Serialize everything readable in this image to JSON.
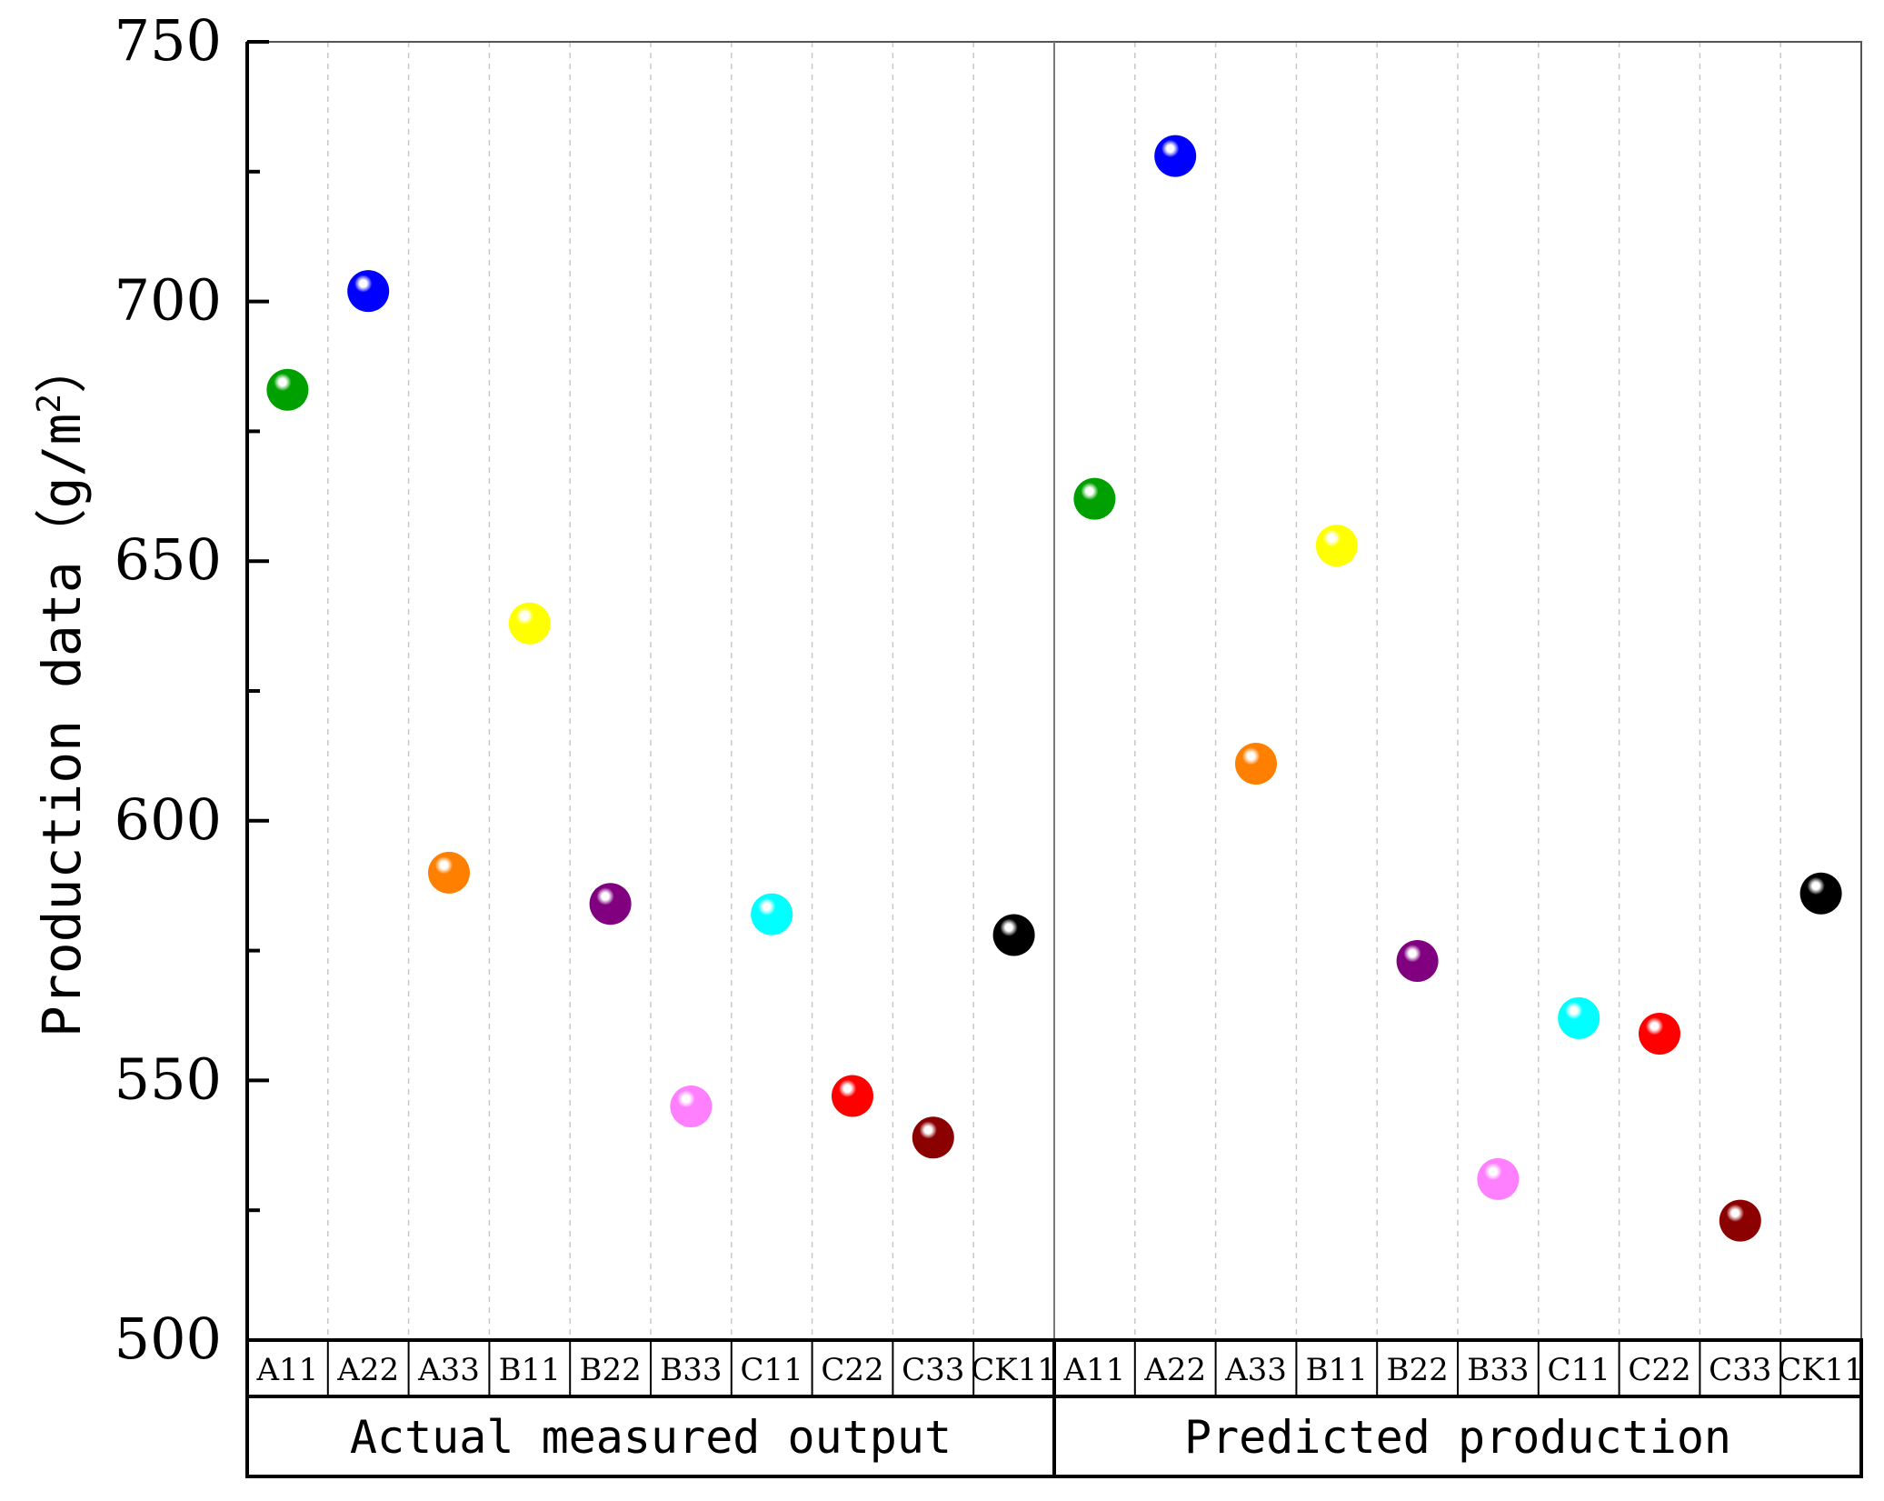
{
  "chart_data": {
    "type": "scatter",
    "ylabel": "Production data（g/m",
    "ylabel_sup": "2",
    "ylabel_end": "）",
    "ylim": [
      500,
      750
    ],
    "yticks": [
      500,
      550,
      600,
      650,
      700,
      750
    ],
    "grid": "vertical-dashed",
    "groups": [
      {
        "label": "Actual measured output",
        "categories": [
          "A11",
          "A22",
          "A33",
          "B11",
          "B22",
          "B33",
          "C11",
          "C22",
          "C33",
          "CK11"
        ],
        "values": [
          683,
          702,
          590,
          638,
          584,
          545,
          582,
          547,
          539,
          578
        ]
      },
      {
        "label": "Predicted production",
        "categories": [
          "A11",
          "A22",
          "A33",
          "B11",
          "B22",
          "B33",
          "C11",
          "C22",
          "C33",
          "CK11"
        ],
        "values": [
          662,
          728,
          611,
          653,
          573,
          531,
          562,
          559,
          523,
          586
        ]
      }
    ],
    "point_colors": [
      "#00a000",
      "#0000ff",
      "#ff8000",
      "#ffff00",
      "#800080",
      "#ff80ff",
      "#00ffff",
      "#ff0000",
      "#8b0000",
      "#000000"
    ]
  }
}
